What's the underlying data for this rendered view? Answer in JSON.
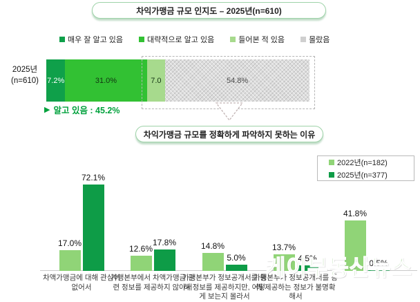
{
  "page": {
    "watermark": "케이부동산뉴스"
  },
  "colors": {
    "very_well": "#0fa04a",
    "roughly": "#32c133",
    "heard_of": "#a7da8d",
    "unknown": "#d9d9d9",
    "y2022": "#90d477",
    "y2025": "#0e9c47",
    "known_text": "#00a13c"
  },
  "chart_data": [
    {
      "type": "bar",
      "orientation": "horizontal-stacked",
      "title": "차익가맹금 규모 인지도 – 2025년(n=610)",
      "row_label_line1": "2025년",
      "row_label_line2": "(n=610)",
      "xlim": [
        0,
        100
      ],
      "segments": [
        {
          "key": "very-well",
          "label": "매우 잘 알고 있음",
          "value": 7.2,
          "display": "7.2%",
          "color": "#0fa04a",
          "text_color": "#ffffff",
          "hatch": false
        },
        {
          "key": "roughly",
          "label": "대략적으로 알고 있음",
          "value": 31.0,
          "display": "31.0%",
          "color": "#32c133",
          "text_color": "#123312",
          "hatch": false
        },
        {
          "key": "heard-of",
          "label": "들어본 적 있음",
          "value": 7.0,
          "display": "7.0",
          "color": "#a7da8d",
          "text_color": "#123312",
          "hatch": false
        },
        {
          "key": "did-not-know",
          "label": "몰랐음",
          "value": 54.8,
          "display": "54.8%",
          "color": "#d9d9d9",
          "text_color": "#4d4d4d",
          "hatch": true
        }
      ],
      "known_marker": "▶",
      "known_label": "알고 있음 : 45.2%"
    },
    {
      "type": "bar",
      "orientation": "vertical-grouped",
      "title": "차익가맹금 규모를 정확하게 파악하지 못하는 이유",
      "legend_position": "top-right",
      "grid": false,
      "ylim": [
        0,
        80
      ],
      "value_suffix": "%",
      "categories": [
        "차액가맹금에 대해 관심이 없어서",
        "가맹본부에서 차액가맹금 관련 정보를 제공하지 않아서",
        "가맹본부가 정보공개서를 통해 정보를 제공하지만, 어떻게 보는지 몰라서",
        "가맹본부가 정보공개서를 통해 제공하는 정보가 불명확해서",
        ""
      ],
      "series": [
        {
          "name": "2022년(n=182)",
          "color": "#90d477",
          "values": [
            17.0,
            12.6,
            14.8,
            13.7,
            41.8
          ]
        },
        {
          "name": "2025년(n=377)",
          "color": "#0e9c47",
          "values": [
            72.1,
            17.8,
            5.0,
            4.5,
            0.5
          ]
        }
      ]
    }
  ]
}
